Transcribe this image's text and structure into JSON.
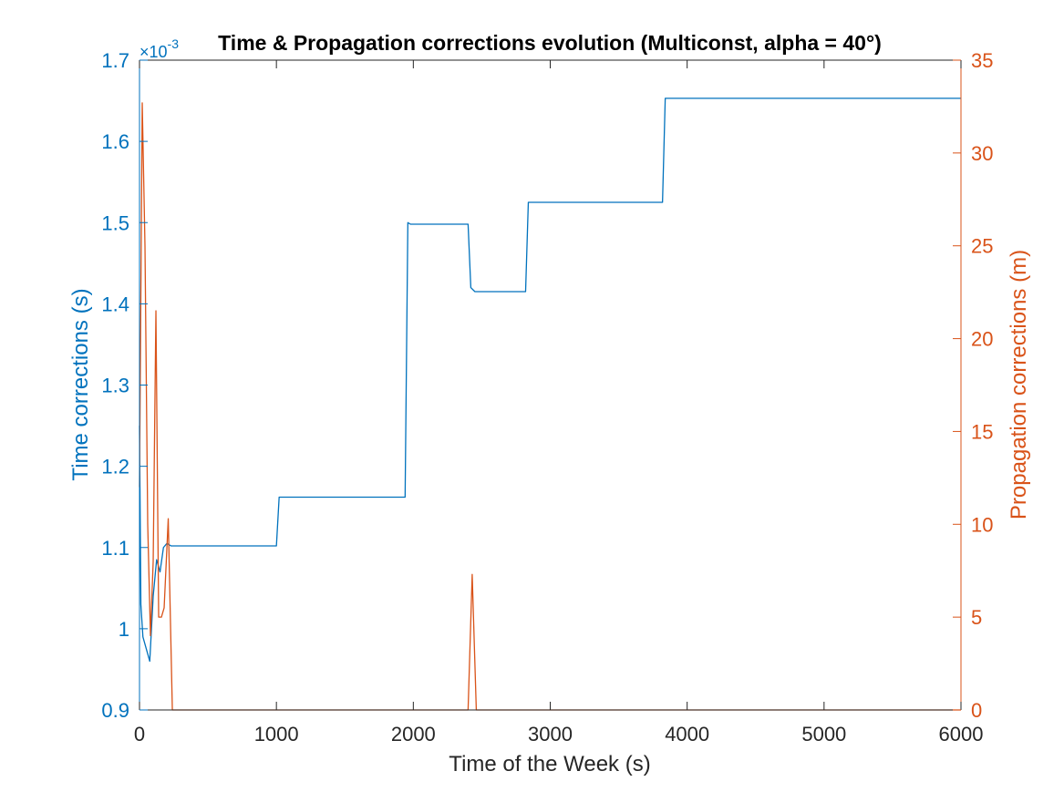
{
  "colors": {
    "left_axis": "#0072BD",
    "right_axis": "#D95319",
    "x_axis": "#262626",
    "title": "#000000"
  },
  "chart_data": {
    "type": "line",
    "title": "Time & Propagation corrections evolution (Multiconst, alpha = 40°)",
    "xlabel": "Time of the Week (s)",
    "ylabel_left": "Time corrections (s)",
    "ylabel_right": "Propagation corrections (m)",
    "exponent_label": "×10",
    "exponent_power": "-3",
    "xlim": [
      0,
      6000
    ],
    "ylim_left": [
      0.9,
      1.7
    ],
    "ylim_right": [
      0,
      35
    ],
    "x_ticks": [
      "0",
      "1000",
      "2000",
      "3000",
      "4000",
      "5000",
      "6000"
    ],
    "y_left_ticks": [
      "0.9",
      "1",
      "1.1",
      "1.2",
      "1.3",
      "1.4",
      "1.5",
      "1.6",
      "1.7"
    ],
    "y_right_ticks": [
      "0",
      "5",
      "10",
      "15",
      "20",
      "25",
      "30",
      "35"
    ],
    "grid": false,
    "series": [
      {
        "axis": "left",
        "color": "#0072BD",
        "points": [
          [
            0,
            1.25
          ],
          [
            10,
            1.03
          ],
          [
            25,
            0.99
          ],
          [
            50,
            0.975
          ],
          [
            75,
            0.96
          ],
          [
            100,
            1.04
          ],
          [
            125,
            1.085
          ],
          [
            150,
            1.07
          ],
          [
            175,
            1.1
          ],
          [
            200,
            1.105
          ],
          [
            230,
            1.102
          ],
          [
            1000,
            1.102
          ],
          [
            1020,
            1.162
          ],
          [
            1940,
            1.162
          ],
          [
            1960,
            1.5
          ],
          [
            1980,
            1.498
          ],
          [
            2400,
            1.498
          ],
          [
            2420,
            1.42
          ],
          [
            2450,
            1.415
          ],
          [
            2820,
            1.415
          ],
          [
            2840,
            1.525
          ],
          [
            3820,
            1.525
          ],
          [
            3840,
            1.653
          ],
          [
            6000,
            1.653
          ]
        ]
      },
      {
        "axis": "right",
        "color": "#D95319",
        "points": [
          [
            0,
            12
          ],
          [
            20,
            32.7
          ],
          [
            40,
            25
          ],
          [
            60,
            10
          ],
          [
            80,
            4
          ],
          [
            100,
            8
          ],
          [
            120,
            21.5
          ],
          [
            140,
            5
          ],
          [
            160,
            5
          ],
          [
            180,
            5.5
          ],
          [
            210,
            10.3
          ],
          [
            240,
            0
          ],
          [
            2400,
            0
          ],
          [
            2430,
            7.3
          ],
          [
            2460,
            0
          ],
          [
            6000,
            0
          ]
        ]
      }
    ]
  }
}
